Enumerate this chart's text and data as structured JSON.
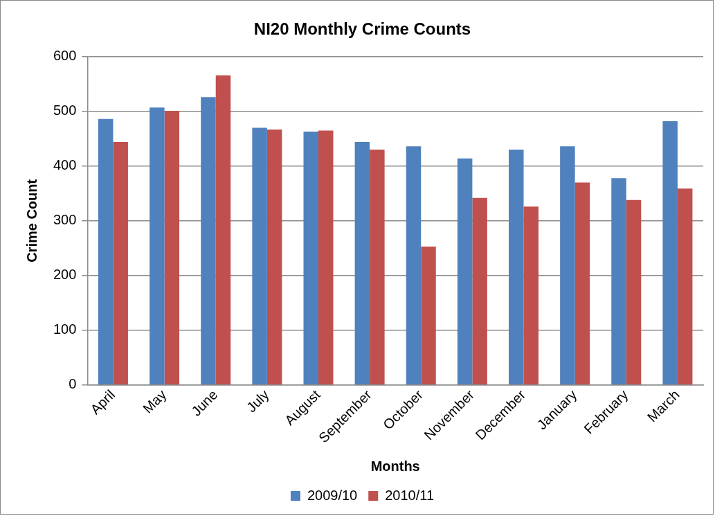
{
  "chart_data": {
    "type": "bar",
    "title": "NI20 Monthly Crime Counts",
    "xlabel": "Months",
    "ylabel": "Crime Count",
    "categories": [
      "April",
      "May",
      "June",
      "July",
      "August",
      "September",
      "October",
      "November",
      "December",
      "January",
      "February",
      "March"
    ],
    "series": [
      {
        "name": "2009/10",
        "color": "#4f81bd",
        "values": [
          486,
          507,
          526,
          470,
          463,
          444,
          436,
          414,
          430,
          436,
          378,
          482
        ]
      },
      {
        "name": "2010/11",
        "color": "#c0504d",
        "values": [
          444,
          501,
          566,
          467,
          465,
          430,
          253,
          342,
          326,
          370,
          338,
          359
        ]
      }
    ],
    "ylim": [
      0,
      600
    ],
    "yticks": [
      0,
      100,
      200,
      300,
      400,
      500,
      600
    ],
    "grid": "y",
    "legend": "bottom"
  }
}
